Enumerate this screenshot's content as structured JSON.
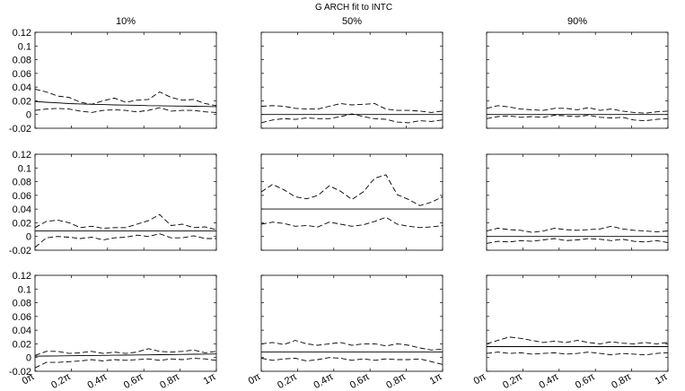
{
  "title": "G ARCH fit to INTC",
  "column_titles": [
    "10%",
    "50%",
    "90%"
  ],
  "colors": {
    "line": "#000000",
    "frame": "#000000",
    "background": "#ffffff"
  },
  "chart_data": {
    "type": "line",
    "title": "G ARCH fit to INTC",
    "layout": "3x3 grid of panels",
    "column_titles": [
      "10%",
      "50%",
      "90%"
    ],
    "ylim": [
      -0.02,
      0.12
    ],
    "yticks": [
      -0.02,
      0,
      0.02,
      0.04,
      0.06,
      0.08,
      0.1,
      0.12
    ],
    "ytick_labels": [
      "-0.02",
      "0",
      "0.02",
      "0.04",
      "0.06",
      "0.08",
      "0.1",
      "0.12"
    ],
    "xlim": [
      0,
      1
    ],
    "xticks": [
      0,
      0.2,
      0.4,
      0.6,
      0.8,
      1
    ],
    "xtick_labels": [
      "0π",
      "0.2π",
      "0.4π",
      "0.6π",
      "0.8π",
      "1π"
    ],
    "x": [
      0,
      0.0625,
      0.125,
      0.1875,
      0.25,
      0.3125,
      0.375,
      0.4375,
      0.5,
      0.5625,
      0.625,
      0.6875,
      0.75,
      0.8125,
      0.875,
      0.9375,
      1
    ],
    "grid": false,
    "panels": [
      {
        "row": 1,
        "col": 1,
        "estimate": [
          0.019,
          0.018,
          0.017,
          0.016,
          0.0155,
          0.015,
          0.0145,
          0.014,
          0.0138,
          0.0135,
          0.013,
          0.0128,
          0.0125,
          0.0123,
          0.012,
          0.0118,
          0.0115
        ],
        "upper": [
          0.037,
          0.033,
          0.027,
          0.025,
          0.018,
          0.015,
          0.02,
          0.024,
          0.018,
          0.021,
          0.022,
          0.033,
          0.025,
          0.021,
          0.022,
          0.016,
          0.013
        ],
        "lower": [
          0.006,
          0.008,
          0.009,
          0.008,
          0.005,
          0.003,
          0.006,
          0.007,
          0.006,
          0.004,
          0.006,
          0.01,
          0.005,
          0.006,
          0.006,
          0.004,
          0.003
        ]
      },
      {
        "row": 1,
        "col": 2,
        "estimate": [
          0,
          0,
          0,
          0,
          0,
          0,
          0,
          0,
          0,
          0,
          0,
          0,
          0,
          0,
          0,
          0,
          0
        ],
        "upper": [
          0.012,
          0.013,
          0.012,
          0.009,
          0.008,
          0.008,
          0.012,
          0.016,
          0.014,
          0.015,
          0.016,
          0.008,
          0.006,
          0.006,
          0.005,
          0.003,
          0.005
        ],
        "lower": [
          -0.012,
          -0.008,
          -0.006,
          -0.007,
          -0.005,
          -0.006,
          -0.006,
          -0.003,
          0.001,
          -0.003,
          -0.006,
          -0.007,
          -0.011,
          -0.012,
          -0.009,
          -0.01,
          -0.008
        ]
      },
      {
        "row": 1,
        "col": 3,
        "estimate": [
          0,
          0,
          0,
          0,
          0,
          0,
          0,
          0,
          0,
          0,
          0,
          0,
          0,
          0,
          0,
          0,
          0
        ],
        "upper": [
          0.009,
          0.013,
          0.011,
          0.008,
          0.007,
          0.006,
          0.009,
          0.009,
          0.007,
          0.01,
          0.006,
          0.008,
          0.005,
          0.003,
          0.002,
          0.004,
          0.005
        ],
        "lower": [
          -0.006,
          -0.003,
          -0.002,
          -0.004,
          -0.003,
          -0.004,
          -0.001,
          -0.002,
          -0.003,
          -0.001,
          -0.004,
          -0.005,
          -0.004,
          -0.008,
          -0.009,
          -0.007,
          -0.006
        ]
      },
      {
        "row": 2,
        "col": 1,
        "estimate": [
          0.008,
          0.008,
          0.008,
          0.008,
          0.008,
          0.008,
          0.008,
          0.008,
          0.008,
          0.008,
          0.008,
          0.008,
          0.008,
          0.008,
          0.008,
          0.008,
          0.008
        ],
        "upper": [
          0.013,
          0.022,
          0.024,
          0.02,
          0.013,
          0.015,
          0.012,
          0.013,
          0.013,
          0.018,
          0.023,
          0.032,
          0.016,
          0.018,
          0.013,
          0.014,
          0.01
        ],
        "lower": [
          -0.016,
          -0.002,
          0,
          -0.001,
          -0.003,
          -0.001,
          -0.005,
          -0.002,
          -0.001,
          0.002,
          0,
          0.004,
          -0.002,
          -0.002,
          0.001,
          -0.003,
          -0.003
        ]
      },
      {
        "row": 2,
        "col": 2,
        "estimate": [
          0.04,
          0.04,
          0.04,
          0.04,
          0.04,
          0.04,
          0.04,
          0.04,
          0.04,
          0.04,
          0.04,
          0.04,
          0.04,
          0.04,
          0.04,
          0.04,
          0.04
        ],
        "upper": [
          0.065,
          0.076,
          0.068,
          0.058,
          0.055,
          0.06,
          0.074,
          0.066,
          0.054,
          0.065,
          0.085,
          0.09,
          0.061,
          0.054,
          0.045,
          0.05,
          0.058
        ],
        "lower": [
          0.018,
          0.021,
          0.019,
          0.015,
          0.016,
          0.014,
          0.021,
          0.018,
          0.015,
          0.017,
          0.022,
          0.028,
          0.018,
          0.015,
          0.013,
          0.014,
          0.016
        ]
      },
      {
        "row": 2,
        "col": 3,
        "estimate": [
          0,
          0,
          0,
          0,
          0,
          0,
          0,
          0,
          0,
          0,
          0,
          0,
          0,
          0,
          0,
          0,
          0
        ],
        "upper": [
          0.008,
          0.012,
          0.01,
          0.009,
          0.006,
          0.008,
          0.012,
          0.01,
          0.009,
          0.01,
          0.011,
          0.015,
          0.011,
          0.009,
          0.008,
          0.007,
          0.008
        ],
        "lower": [
          -0.01,
          -0.007,
          -0.008,
          -0.006,
          -0.007,
          -0.005,
          -0.003,
          -0.006,
          -0.005,
          -0.003,
          -0.004,
          -0.006,
          -0.004,
          -0.007,
          -0.008,
          -0.006,
          -0.009
        ]
      },
      {
        "row": 3,
        "col": 1,
        "estimate": [
          0.002,
          0.0022,
          0.0024,
          0.0026,
          0.0028,
          0.003,
          0.0032,
          0.0034,
          0.0036,
          0.0038,
          0.004,
          0.0042,
          0.0044,
          0.0046,
          0.0048,
          0.005,
          0.0052
        ],
        "upper": [
          0.003,
          0.009,
          0.009,
          0.006,
          0.007,
          0.009,
          0.006,
          0.008,
          0.006,
          0.008,
          0.013,
          0.009,
          0.008,
          0.009,
          0.011,
          0.007,
          0.009
        ],
        "lower": [
          -0.015,
          -0.007,
          -0.007,
          -0.006,
          -0.005,
          -0.003,
          -0.005,
          -0.003,
          -0.004,
          -0.003,
          -0.002,
          -0.004,
          -0.002,
          -0.003,
          -0.001,
          -0.002,
          -0.004
        ]
      },
      {
        "row": 3,
        "col": 2,
        "estimate": [
          0.008,
          0.008,
          0.008,
          0.008,
          0.008,
          0.008,
          0.008,
          0.008,
          0.008,
          0.008,
          0.008,
          0.008,
          0.008,
          0.008,
          0.008,
          0.008,
          0.008
        ],
        "upper": [
          0.02,
          0.022,
          0.019,
          0.025,
          0.02,
          0.018,
          0.02,
          0.022,
          0.018,
          0.02,
          0.02,
          0.017,
          0.02,
          0.018,
          0.014,
          0.011,
          0.012
        ],
        "lower": [
          -0.001,
          -0.004,
          -0.002,
          -0.001,
          -0.005,
          -0.003,
          0,
          -0.001,
          -0.004,
          -0.002,
          -0.004,
          -0.002,
          -0.003,
          -0.003,
          -0.002,
          -0.006,
          -0.01
        ]
      },
      {
        "row": 3,
        "col": 3,
        "estimate": [
          0.016,
          0.016,
          0.016,
          0.016,
          0.016,
          0.016,
          0.016,
          0.016,
          0.016,
          0.016,
          0.016,
          0.016,
          0.016,
          0.016,
          0.016,
          0.016,
          0.016
        ],
        "upper": [
          0.02,
          0.025,
          0.03,
          0.028,
          0.025,
          0.022,
          0.024,
          0.022,
          0.025,
          0.022,
          0.02,
          0.023,
          0.021,
          0.02,
          0.022,
          0.02,
          0.022
        ],
        "lower": [
          0.006,
          0.008,
          0.006,
          0.007,
          0.005,
          0.006,
          0.007,
          0.005,
          0.006,
          0.008,
          0.006,
          0.004,
          0.006,
          0.005,
          0.004,
          0.006,
          0.007
        ]
      }
    ]
  }
}
